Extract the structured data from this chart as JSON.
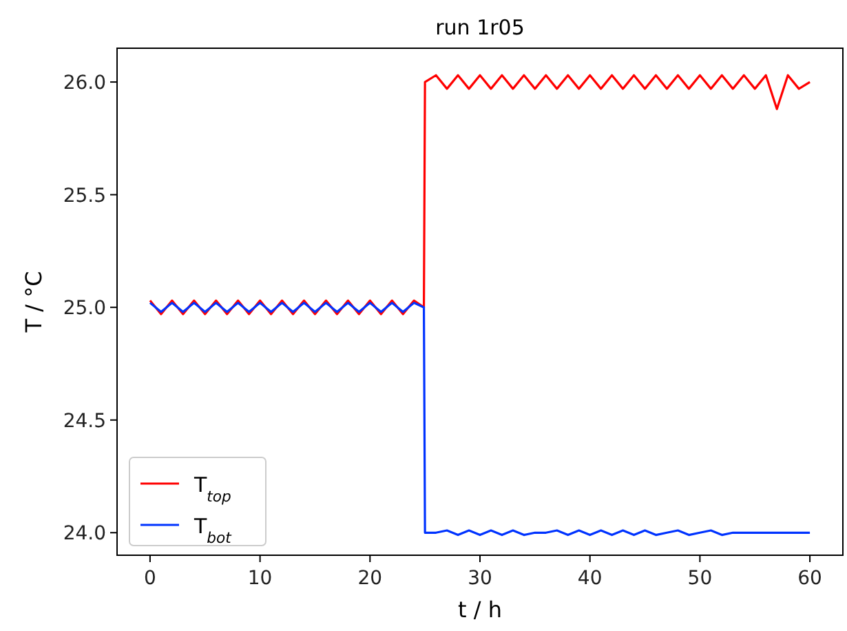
{
  "chart_data": {
    "type": "line",
    "title": "run 1r05",
    "xlabel": "t / h",
    "ylabel": "T / °C",
    "xlim": [
      -3,
      63
    ],
    "xticks": [
      0,
      10,
      20,
      30,
      40,
      50,
      60
    ],
    "ylim": [
      23.9,
      26.15
    ],
    "yticks": [
      {
        "value": 24,
        "label": "24.0"
      },
      {
        "value": 24.5,
        "label": "24.5"
      },
      {
        "value": 25,
        "label": "25.0"
      },
      {
        "value": 25.5,
        "label": "25.5"
      },
      {
        "value": 26,
        "label": "26.0"
      }
    ],
    "grid": false,
    "legend": "bottom left",
    "marker": "none",
    "line_style": "solid",
    "series": [
      {
        "name": "T$_{top}$",
        "color": "#ff0000",
        "x": [
          0,
          1,
          2,
          3,
          4,
          5,
          6,
          7,
          8,
          9,
          10,
          11,
          12,
          13,
          14,
          15,
          16,
          17,
          18,
          19,
          20,
          21,
          22,
          23,
          24,
          24.9,
          25,
          26,
          27,
          28,
          29,
          30,
          31,
          32,
          33,
          34,
          35,
          36,
          37,
          38,
          39,
          40,
          41,
          42,
          43,
          44,
          45,
          46,
          47,
          48,
          49,
          50,
          51,
          52,
          53,
          54,
          55,
          56,
          57,
          58,
          59,
          60
        ],
        "values": [
          25.03,
          24.97,
          25.03,
          24.97,
          25.03,
          24.97,
          25.03,
          24.97,
          25.03,
          24.97,
          25.03,
          24.97,
          25.03,
          24.97,
          25.03,
          24.97,
          25.03,
          24.97,
          25.03,
          24.97,
          25.03,
          24.97,
          25.03,
          24.97,
          25.03,
          25.0,
          26.0,
          26.03,
          25.97,
          26.03,
          25.97,
          26.03,
          25.97,
          26.03,
          25.97,
          26.03,
          25.97,
          26.03,
          25.97,
          26.03,
          25.97,
          26.03,
          25.97,
          26.03,
          25.97,
          26.03,
          25.97,
          26.03,
          25.97,
          26.03,
          25.97,
          26.03,
          25.97,
          26.03,
          25.97,
          26.03,
          25.97,
          26.03,
          25.88,
          26.03,
          25.97,
          26.0
        ]
      },
      {
        "name": "T$_{bot}$",
        "color": "#0033ff",
        "x": [
          0,
          1,
          2,
          3,
          4,
          5,
          6,
          7,
          8,
          9,
          10,
          11,
          12,
          13,
          14,
          15,
          16,
          17,
          18,
          19,
          20,
          21,
          22,
          23,
          24,
          24.9,
          25,
          26,
          27,
          28,
          29,
          30,
          31,
          32,
          33,
          34,
          35,
          36,
          37,
          38,
          39,
          40,
          41,
          42,
          43,
          44,
          45,
          46,
          47,
          48,
          49,
          50,
          51,
          52,
          53,
          54,
          55,
          56,
          57,
          58,
          59,
          60
        ],
        "values": [
          25.02,
          24.98,
          25.02,
          24.98,
          25.02,
          24.98,
          25.02,
          24.98,
          25.02,
          24.98,
          25.02,
          24.98,
          25.02,
          24.98,
          25.02,
          24.98,
          25.02,
          24.98,
          25.02,
          24.98,
          25.02,
          24.98,
          25.02,
          24.98,
          25.02,
          25.0,
          24.0,
          24.0,
          24.01,
          23.99,
          24.01,
          23.99,
          24.01,
          23.99,
          24.01,
          23.99,
          24.0,
          24.0,
          24.01,
          23.99,
          24.01,
          23.99,
          24.01,
          23.99,
          24.01,
          23.99,
          24.01,
          23.99,
          24.0,
          24.01,
          23.99,
          24.0,
          24.01,
          23.99,
          24.0,
          24.0,
          24.0,
          24.0,
          24.0,
          24.0,
          24.0,
          24.0
        ]
      }
    ]
  }
}
